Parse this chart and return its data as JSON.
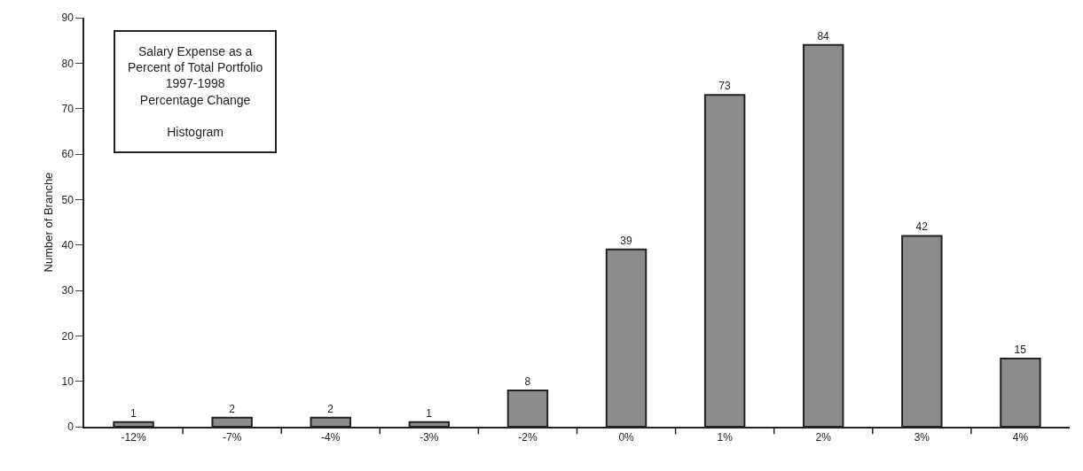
{
  "chart_data": {
    "type": "bar",
    "title": "Salary Expense as a\nPercent of Total Portfolio\n1997-1998\nPercentage Change",
    "subtitle": "Histogram",
    "ylabel": "Number of Branche",
    "categories": [
      "-12%",
      "-7%",
      "-4%",
      "-3%",
      "-2%",
      "0%",
      "1%",
      "2%",
      "3%",
      "4%"
    ],
    "values": [
      1,
      2,
      2,
      1,
      8,
      39,
      73,
      84,
      42,
      15
    ],
    "color": "#8c8c8c",
    "ylim": [
      0,
      90
    ],
    "yticks": [
      0,
      10,
      20,
      30,
      40,
      50,
      60,
      70,
      80,
      90
    ],
    "grid": false,
    "data_labels": true,
    "legend": false
  }
}
